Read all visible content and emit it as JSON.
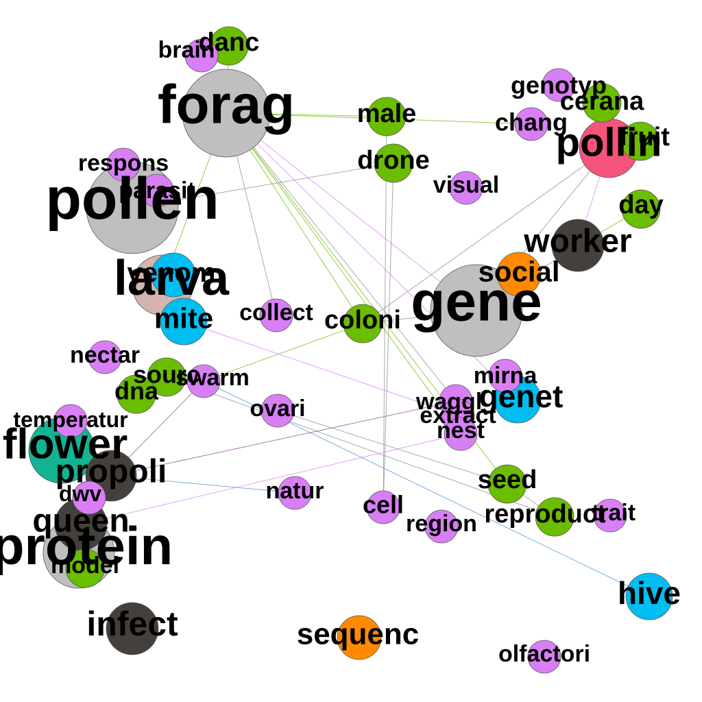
{
  "colors": {
    "grey": "#bfbfbf",
    "dark": "#45403b",
    "pink": "#d4b4b0",
    "violet": "#d97ff5",
    "green": "#6bbd00",
    "blue": "#00bef2",
    "orange": "#ff8a00",
    "teal": "#13b394",
    "red": "#f4547a"
  },
  "nodes": [
    {
      "id": "forag",
      "label": "forag",
      "color": "grey"
    },
    {
      "id": "pollen",
      "label": "pollen",
      "color": "grey"
    },
    {
      "id": "gene",
      "label": "gene",
      "color": "grey"
    },
    {
      "id": "larva",
      "label": "larva",
      "color": "pink"
    },
    {
      "id": "protein",
      "label": "protein",
      "color": "grey"
    },
    {
      "id": "flower",
      "label": "flower",
      "color": "teal"
    },
    {
      "id": "pollin",
      "label": "pollin",
      "color": "red"
    },
    {
      "id": "worker",
      "label": "worker",
      "color": "dark"
    },
    {
      "id": "infect",
      "label": "infect",
      "color": "dark"
    },
    {
      "id": "queen",
      "label": "queen",
      "color": "dark"
    },
    {
      "id": "propoli",
      "label": "propoli",
      "color": "dark"
    },
    {
      "id": "venom",
      "label": "venom",
      "color": "blue"
    },
    {
      "id": "mite",
      "label": "mite",
      "color": "blue"
    },
    {
      "id": "genet",
      "label": "genet",
      "color": "blue"
    },
    {
      "id": "hive",
      "label": "hive",
      "color": "blue"
    },
    {
      "id": "social",
      "label": "social",
      "color": "orange"
    },
    {
      "id": "sequenc",
      "label": "sequenc",
      "color": "orange"
    },
    {
      "id": "danc",
      "label": "danc",
      "color": "green"
    },
    {
      "id": "male",
      "label": "male",
      "color": "green"
    },
    {
      "id": "drone",
      "label": "drone",
      "color": "green"
    },
    {
      "id": "cerana",
      "label": "cerana",
      "color": "green"
    },
    {
      "id": "fruit",
      "label": "fruit",
      "color": "green"
    },
    {
      "id": "day",
      "label": "day",
      "color": "green"
    },
    {
      "id": "coloni",
      "label": "coloni",
      "color": "green"
    },
    {
      "id": "sourc",
      "label": "sourc",
      "color": "green"
    },
    {
      "id": "dna",
      "label": "dna",
      "color": "green"
    },
    {
      "id": "seed",
      "label": "seed",
      "color": "green"
    },
    {
      "id": "reproduct",
      "label": "reproduct",
      "color": "green"
    },
    {
      "id": "model",
      "label": "model",
      "color": "green"
    },
    {
      "id": "brain",
      "label": "brain",
      "color": "violet"
    },
    {
      "id": "genotyp",
      "label": "genotyp",
      "color": "violet"
    },
    {
      "id": "chang",
      "label": "chang",
      "color": "violet"
    },
    {
      "id": "respons",
      "label": "respons",
      "color": "violet"
    },
    {
      "id": "parasit",
      "label": "parasit",
      "color": "violet"
    },
    {
      "id": "visual",
      "label": "visual",
      "color": "violet"
    },
    {
      "id": "collect",
      "label": "collect",
      "color": "violet"
    },
    {
      "id": "nectar",
      "label": "nectar",
      "color": "violet"
    },
    {
      "id": "swarm",
      "label": "swarm",
      "color": "violet"
    },
    {
      "id": "temperatur",
      "label": "temperatur",
      "color": "violet"
    },
    {
      "id": "ovari",
      "label": "ovari",
      "color": "violet"
    },
    {
      "id": "mirna",
      "label": "mirna",
      "color": "violet"
    },
    {
      "id": "waggl",
      "label": "waggl",
      "color": "violet"
    },
    {
      "id": "extract",
      "label": "extract",
      "color": "violet"
    },
    {
      "id": "nest",
      "label": "nest",
      "color": "violet"
    },
    {
      "id": "dwv",
      "label": "dwv",
      "color": "violet"
    },
    {
      "id": "natur",
      "label": "natur",
      "color": "violet"
    },
    {
      "id": "cell",
      "label": "cell",
      "color": "violet"
    },
    {
      "id": "region",
      "label": "region",
      "color": "violet"
    },
    {
      "id": "trait",
      "label": "trait",
      "color": "violet"
    },
    {
      "id": "olfactori",
      "label": "olfactori",
      "color": "violet"
    }
  ],
  "edges": [
    {
      "source": "forag",
      "target": "male",
      "color": "#6bbd00"
    },
    {
      "source": "forag",
      "target": "chang",
      "color": "#6bbd00"
    },
    {
      "source": "forag",
      "target": "gene",
      "color": "#d97ff5"
    },
    {
      "source": "forag",
      "target": "genet",
      "color": "#d97ff5"
    },
    {
      "source": "forag",
      "target": "seed",
      "color": "#6bbd00"
    },
    {
      "source": "forag",
      "target": "nest",
      "color": "#6bbd00"
    },
    {
      "source": "forag",
      "target": "waggl",
      "color": "#8c8c8c"
    },
    {
      "source": "forag",
      "target": "collect",
      "color": "#8c8c8c"
    },
    {
      "source": "forag",
      "target": "larva",
      "color": "#6bbd00"
    },
    {
      "source": "forag",
      "target": "danc",
      "color": "#8c8c8c"
    },
    {
      "source": "forag",
      "target": "coloni",
      "color": "#6bbd00"
    },
    {
      "source": "pollen",
      "target": "drone",
      "color": "#8c8c8c"
    },
    {
      "source": "drone",
      "target": "cell",
      "color": "#8c8c8c"
    },
    {
      "source": "male",
      "target": "cell",
      "color": "#8c8c8c"
    },
    {
      "source": "pollin",
      "target": "coloni",
      "color": "#8c8c8c"
    },
    {
      "source": "pollin",
      "target": "worker",
      "color": "#d97ff5"
    },
    {
      "source": "worker",
      "target": "day",
      "color": "#6bbd00"
    },
    {
      "source": "worker",
      "target": "gene",
      "color": "#8c8c8c"
    },
    {
      "source": "gene",
      "target": "social",
      "color": "#8c8c8c"
    },
    {
      "source": "coloni",
      "target": "swarm",
      "color": "#6bbd00"
    },
    {
      "source": "coloni",
      "target": "gene",
      "color": "#8c8c8c"
    },
    {
      "source": "mite",
      "target": "extract",
      "color": "#d97ff5"
    },
    {
      "source": "swarm",
      "target": "hive",
      "color": "#4a90d9"
    },
    {
      "source": "swarm",
      "target": "propoli",
      "color": "#8e4a9e"
    },
    {
      "source": "sourc",
      "target": "reproduct",
      "color": "#8c8c8c"
    },
    {
      "source": "propoli",
      "target": "waggl",
      "color": "#8e4a9e"
    },
    {
      "source": "propoli",
      "target": "natur",
      "color": "#4a90d9"
    },
    {
      "source": "queen",
      "target": "nest",
      "color": "#d97ff5"
    },
    {
      "source": "ovari",
      "target": "seed",
      "color": "#8c8c8c"
    },
    {
      "source": "dna",
      "target": "sourc",
      "color": "#6bbd00"
    },
    {
      "source": "mirna",
      "target": "genet",
      "color": "#d97ff5"
    },
    {
      "source": "seed",
      "target": "reproduct",
      "color": "#8c8c8c"
    },
    {
      "source": "gene",
      "target": "pollin",
      "color": "#8c8c8c"
    }
  ]
}
